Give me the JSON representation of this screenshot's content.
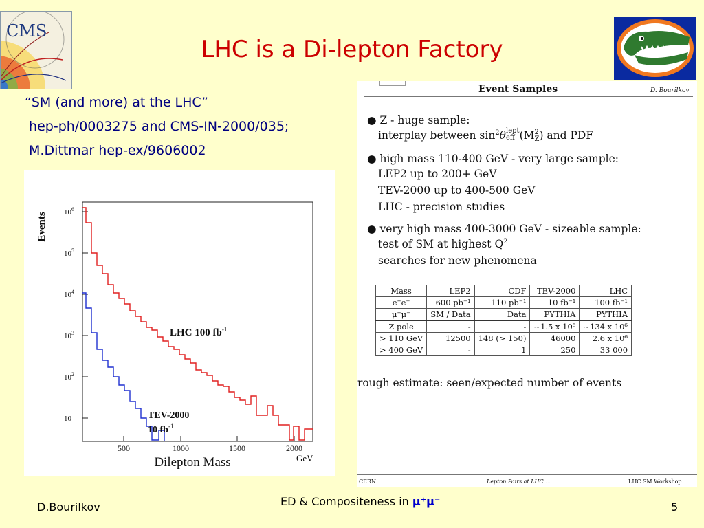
{
  "slide": {
    "title": "LHC is a Di-lepton Factory",
    "refs": [
      "“SM (and more) at the LHC”",
      " hep-ph/0003275 and CMS-IN-2000/035;",
      " M.Dittmar hep-ex/9606002"
    ],
    "footer_left": "D.Bourilkov",
    "footer_center": "ED & Compositeness in ",
    "footer_mu": "μ⁺μ⁻",
    "footer_right": "5"
  },
  "logos": {
    "cms_text": "CMS",
    "left": "cms-logo",
    "right": "gator-logo"
  },
  "plot": {
    "ylabel": "Events",
    "xlabel": "Dilepton Mass",
    "xunit": "GeV",
    "xticks": [
      "500",
      "1000",
      "1500",
      "2000"
    ],
    "yticks": [
      {
        "base": "10",
        "exp": "6"
      },
      {
        "base": "10",
        "exp": "5"
      },
      {
        "base": "10",
        "exp": "4"
      },
      {
        "base": "10",
        "exp": "3"
      },
      {
        "base": "10",
        "exp": "2"
      },
      {
        "base": "10",
        "exp": ""
      }
    ],
    "lhc_label": "LHC 100 fb",
    "lhc_exp": "-1",
    "tev_label1": "TEV-2000",
    "tev_label2": "10 fb",
    "tev_exp": "-1",
    "colors": {
      "lhc": "#e02020",
      "tev": "#2030d0"
    }
  },
  "paper": {
    "header_title": "Event Samples",
    "header_author": "D. Bourilkov",
    "b1_l1": "Z - huge sample:",
    "b1_l2a": "interplay between sin",
    "b1_l2b": "2",
    "b1_l2c": "θ",
    "b1_l2d": "lept",
    "b1_l2e": "eff",
    "b1_l2f": "(M",
    "b1_l2g": "2",
    "b1_l2h": "Z",
    "b1_l2i": ") and PDF",
    "b2_l1": "high mass 110-400 GeV - very large sample:",
    "b2_l2": "LEP2 up to 200+ GeV",
    "b2_l3": "TEV-2000 up to 400-500 GeV",
    "b2_l4": "LHC - precision studies",
    "b3_l1": "very high mass 400-3000 GeV - sizeable sample:",
    "b3_l2a": "test of SM at highest Q",
    "b3_l2b": "2",
    "b3_l3": "searches for new phenomena",
    "table": {
      "header_rows": [
        [
          "Mass",
          "LEP2",
          "CDF",
          "TEV-2000",
          "LHC"
        ],
        [
          "e⁺e⁻",
          "600 pb⁻¹",
          "110 pb⁻¹",
          "10 fb⁻¹",
          "100 fb⁻¹"
        ],
        [
          "μ⁺μ⁻",
          "SM / Data",
          "Data",
          "PYTHIA",
          "PYTHIA"
        ]
      ],
      "body_rows": [
        [
          "Z pole",
          "-",
          "-",
          "~1.5 x 10⁶",
          "~134 x 10⁶"
        ],
        [
          "> 110 GeV",
          "12500",
          "148 (> 150)",
          "46000",
          "2.6 x 10⁶"
        ],
        [
          "> 400 GeV",
          "-",
          "1",
          "250",
          "33 000"
        ]
      ]
    },
    "rough": "rough estimate: seen/expected number of events",
    "foot_left": "CERN",
    "foot_center": "Lepton Pairs at LHC ...",
    "foot_right": "LHC SM Workshop"
  }
}
